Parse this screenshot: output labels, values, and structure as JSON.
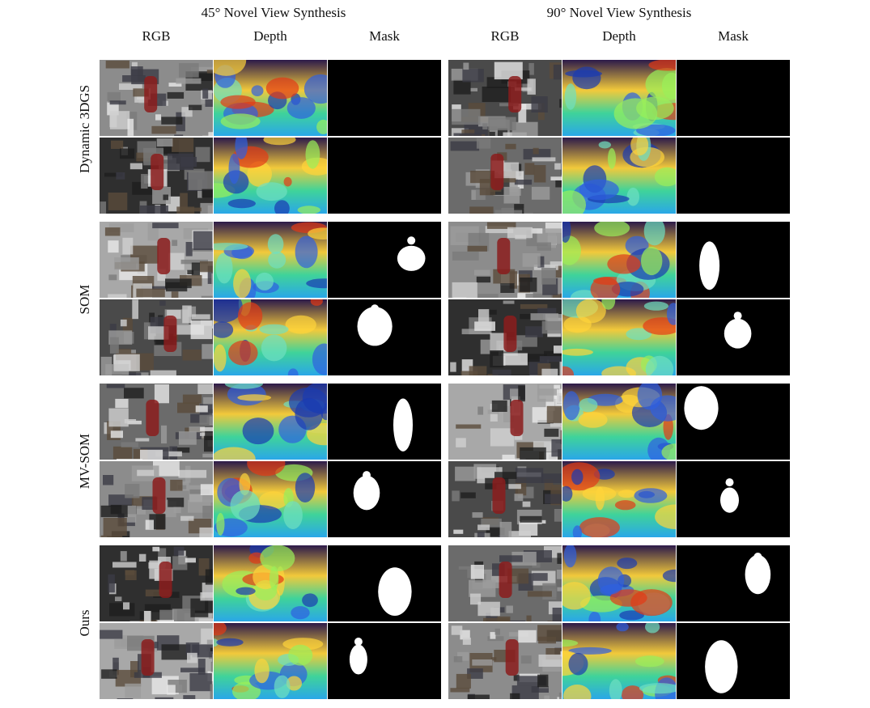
{
  "groups": [
    {
      "title": "45° Novel View Synthesis",
      "columns": [
        "RGB",
        "Depth",
        "Mask"
      ]
    },
    {
      "title": "90° Novel View Synthesis",
      "columns": [
        "RGB",
        "Depth",
        "Mask"
      ]
    }
  ],
  "methods": [
    "Dynamic 3DGS",
    "SOM",
    "MV-SOM",
    "Ours"
  ]
}
